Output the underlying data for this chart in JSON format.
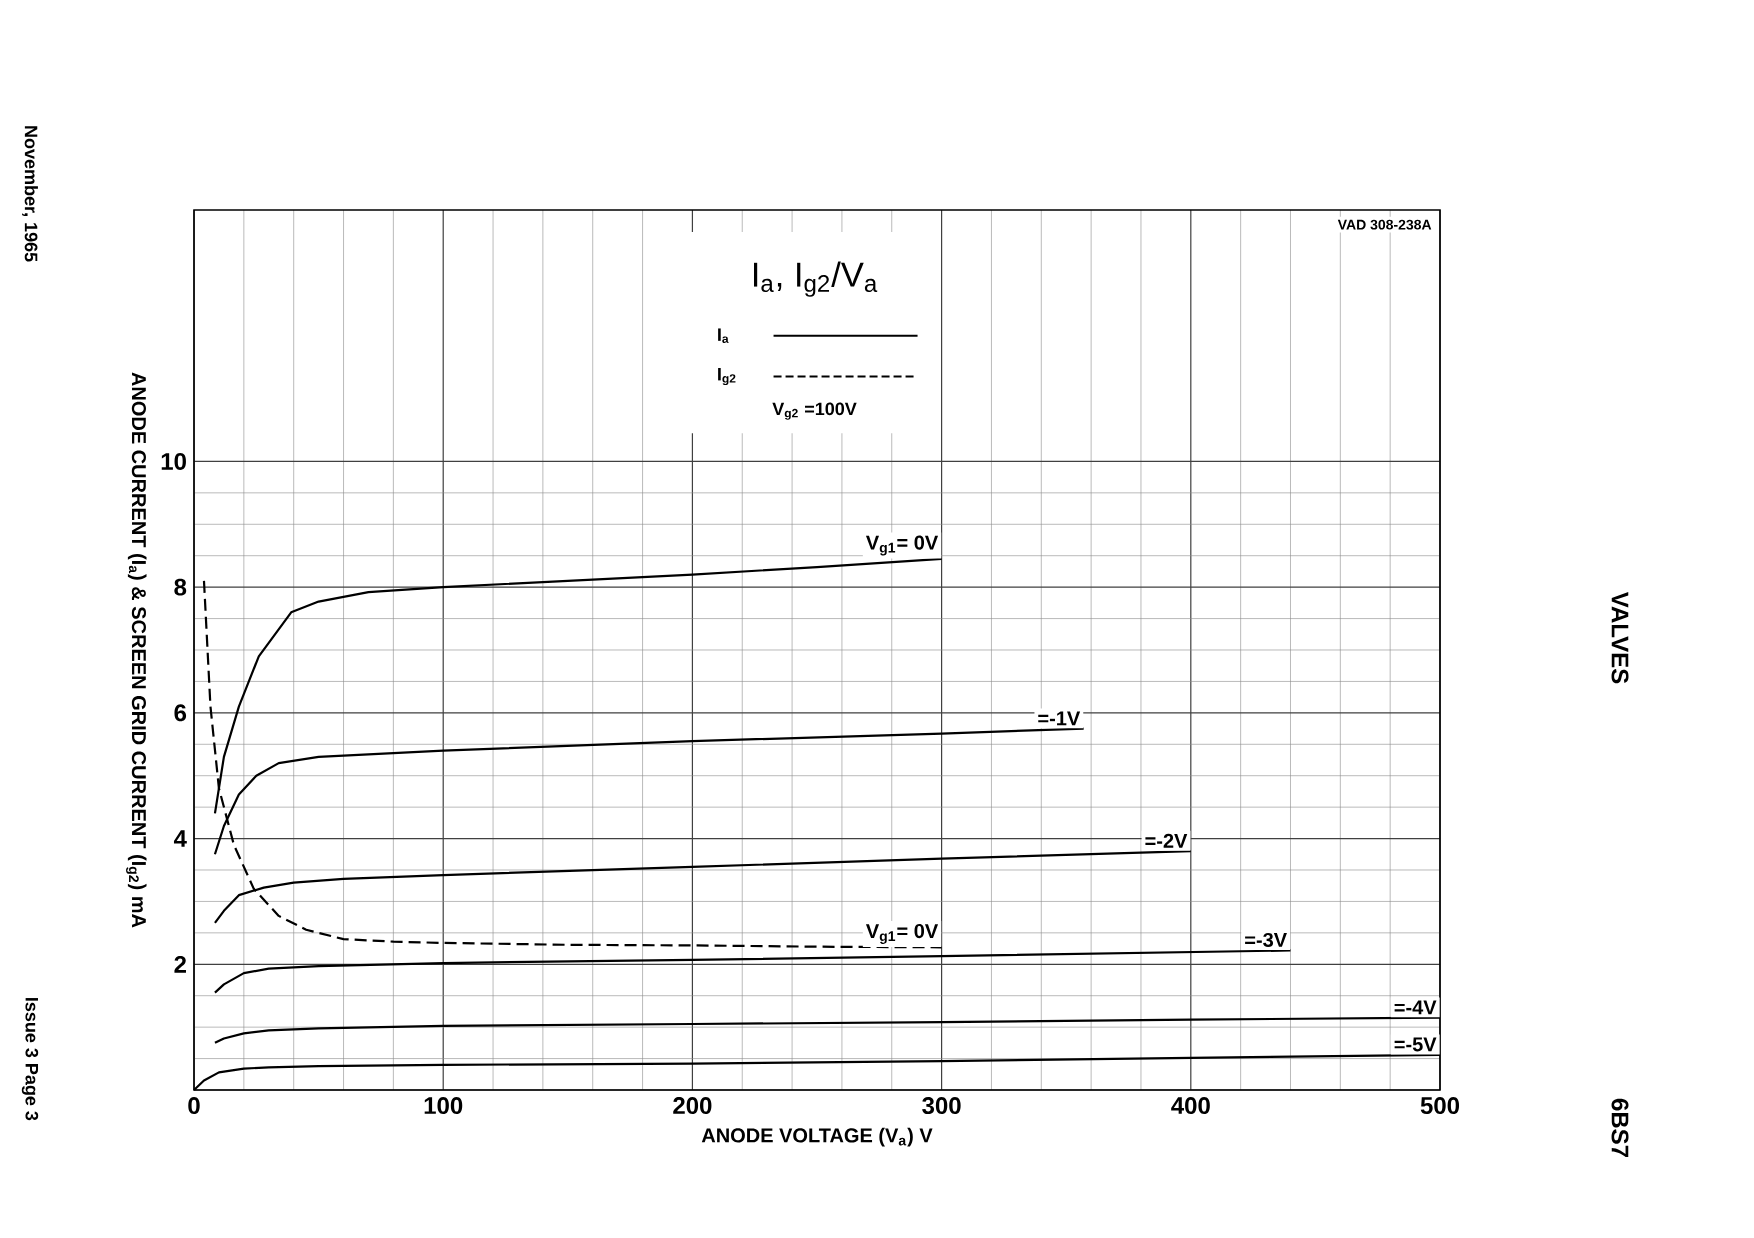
{
  "chart_data": {
    "type": "line",
    "title": "I$_{a}$, I$_{g2}$/V$_{a}$",
    "xlabel": "ANODE VOLTAGE (V$_{a}$) V",
    "ylabel": "ANODE CURRENT (I$_{a}$) & SCREEN GRID CURRENT (I$_{g2}$) mA",
    "xlim": [
      0,
      500
    ],
    "ylim": [
      0,
      14
    ],
    "xticks": [
      0,
      100,
      200,
      300,
      400,
      500
    ],
    "yticks": [
      {
        "value": 0,
        "label": null
      },
      2,
      4,
      6,
      8,
      10
    ],
    "grid": true,
    "annotations": [
      "I$_{a}$",
      "I$_{g2}$",
      "V$_{g2}$ =100V",
      "VAD 308-238A",
      "November, 1965",
      "Issue 3 Page 3",
      "VALVES",
      "6BS7"
    ],
    "series": [
      {
        "name": "V$_{g1}$= 0V",
        "color": "#000000",
        "line_style": "solid",
        "x": [
          8.4,
          12,
          18,
          26,
          39,
          50,
          70,
          100,
          150,
          200,
          250,
          300
        ],
        "values": [
          4.4,
          5.3,
          6.1,
          6.9,
          7.6,
          7.77,
          7.92,
          8.0,
          8.1,
          8.2,
          8.32,
          8.45
        ]
      },
      {
        "name": "=-1V",
        "color": "#000000",
        "line_style": "solid",
        "x": [
          8.4,
          12,
          18,
          25,
          34,
          50,
          100,
          200,
          300,
          357
        ],
        "values": [
          3.75,
          4.2,
          4.7,
          5.0,
          5.2,
          5.3,
          5.4,
          5.55,
          5.67,
          5.75
        ]
      },
      {
        "name": "=-2V",
        "color": "#000000",
        "line_style": "solid",
        "x": [
          8.4,
          12,
          18,
          28,
          40,
          60,
          100,
          200,
          300,
          400
        ],
        "values": [
          2.66,
          2.85,
          3.1,
          3.22,
          3.3,
          3.36,
          3.42,
          3.55,
          3.68,
          3.8
        ]
      },
      {
        "name": "=-3V",
        "color": "#000000",
        "line_style": "solid",
        "x": [
          8.4,
          12,
          20,
          30,
          50,
          100,
          200,
          300,
          440
        ],
        "values": [
          1.55,
          1.68,
          1.86,
          1.93,
          1.97,
          2.02,
          2.07,
          2.13,
          2.22
        ]
      },
      {
        "name": "=-4V",
        "color": "#000000",
        "line_style": "solid",
        "x": [
          8.4,
          12,
          20,
          30,
          50,
          100,
          200,
          300,
          400,
          500
        ],
        "values": [
          0.75,
          0.82,
          0.9,
          0.95,
          0.98,
          1.02,
          1.05,
          1.08,
          1.12,
          1.15
        ]
      },
      {
        "name": "=-5V",
        "color": "#000000",
        "line_style": "solid",
        "x": [
          0,
          4,
          10,
          20,
          30,
          50,
          100,
          200,
          300,
          400,
          500
        ],
        "values": [
          0,
          0.15,
          0.28,
          0.34,
          0.36,
          0.38,
          0.4,
          0.42,
          0.46,
          0.51,
          0.56
        ]
      },
      {
        "name": "V$_{g1}$= 0V",
        "color": "#000000",
        "line_style": "dashed",
        "x": [
          4,
          6.6,
          10,
          16,
          24,
          34,
          45,
          60,
          80,
          100,
          150,
          200,
          250,
          300
        ],
        "values": [
          8.1,
          6.1,
          4.8,
          3.9,
          3.2,
          2.77,
          2.55,
          2.4,
          2.36,
          2.34,
          2.31,
          2.3,
          2.28,
          2.27
        ]
      }
    ]
  }
}
